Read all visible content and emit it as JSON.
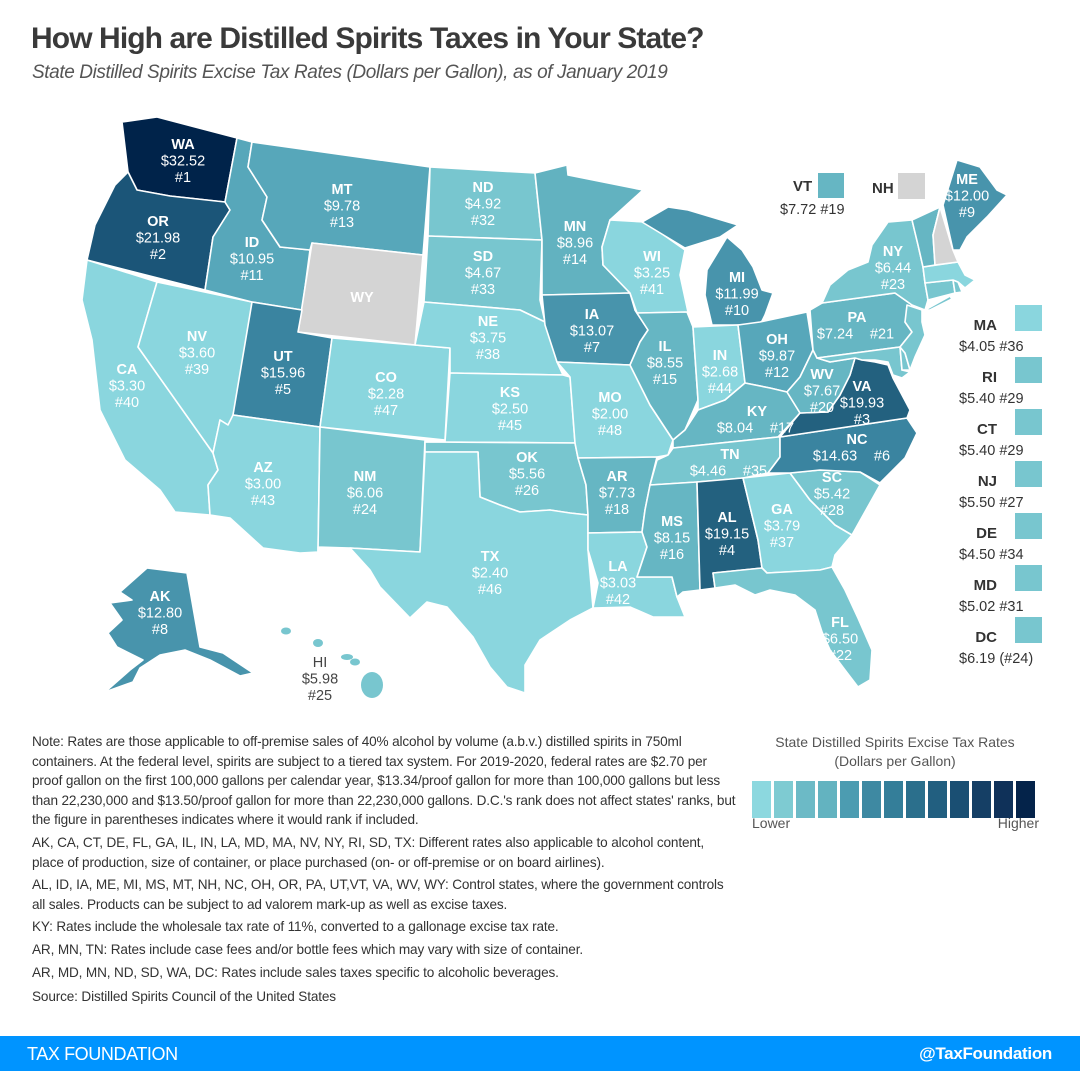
{
  "header": {
    "title": "How High are Distilled Spirits Taxes in Your State?",
    "subtitle": "State Distilled Spirits Excise Tax Rates (Dollars per Gallon), as of January 2019"
  },
  "colors": {
    "no_data": "#d4d4d4",
    "label_light": "#ffffff",
    "label_dark": "#444444",
    "footer": "#0094ff"
  },
  "states": [
    {
      "abbr": "WA",
      "rate": "$32.52",
      "rank": "#1",
      "color": "#00234a"
    },
    {
      "abbr": "OR",
      "rate": "$21.98",
      "rank": "#2",
      "color": "#1b5578"
    },
    {
      "abbr": "VA",
      "rate": "$19.93",
      "rank": "#3",
      "color": "#23617f"
    },
    {
      "abbr": "AL",
      "rate": "$19.15",
      "rank": "#4",
      "color": "#23617f"
    },
    {
      "abbr": "UT",
      "rate": "$15.96",
      "rank": "#5",
      "color": "#3a84a0"
    },
    {
      "abbr": "NC",
      "rate": "$14.63",
      "rank": "#6",
      "color": "#3a84a0"
    },
    {
      "abbr": "IA",
      "rate": "$13.07",
      "rank": "#7",
      "color": "#4894ac"
    },
    {
      "abbr": "AK",
      "rate": "$12.80",
      "rank": "#8",
      "color": "#4894ac"
    },
    {
      "abbr": "ME",
      "rate": "$12.00",
      "rank": "#9",
      "color": "#4894ac"
    },
    {
      "abbr": "MI",
      "rate": "$11.99",
      "rank": "#10",
      "color": "#4894ac"
    },
    {
      "abbr": "ID",
      "rate": "$10.95",
      "rank": "#11",
      "color": "#57a7ba"
    },
    {
      "abbr": "OH",
      "rate": "$9.87",
      "rank": "#12",
      "color": "#57a7ba"
    },
    {
      "abbr": "MT",
      "rate": "$9.78",
      "rank": "#13",
      "color": "#57a7ba"
    },
    {
      "abbr": "MN",
      "rate": "$8.96",
      "rank": "#14",
      "color": "#62b2c0"
    },
    {
      "abbr": "IL",
      "rate": "$8.55",
      "rank": "#15",
      "color": "#66b6c3"
    },
    {
      "abbr": "MS",
      "rate": "$8.15",
      "rank": "#16",
      "color": "#66b6c3"
    },
    {
      "abbr": "KY",
      "rate": "$8.04",
      "rank": "#17",
      "color": "#66b6c3"
    },
    {
      "abbr": "AR",
      "rate": "$7.73",
      "rank": "#18",
      "color": "#66b6c3"
    },
    {
      "abbr": "VT",
      "rate": "$7.72",
      "rank": "#19",
      "color": "#66b6c3"
    },
    {
      "abbr": "WV",
      "rate": "$7.67",
      "rank": "#20",
      "color": "#66b6c3"
    },
    {
      "abbr": "PA",
      "rate": "$7.24",
      "rank": "#21",
      "color": "#66b6c3"
    },
    {
      "abbr": "FL",
      "rate": "$6.50",
      "rank": "#22",
      "color": "#78c6cf"
    },
    {
      "abbr": "NY",
      "rate": "$6.44",
      "rank": "#23",
      "color": "#78c6cf"
    },
    {
      "abbr": "NM",
      "rate": "$6.06",
      "rank": "#24",
      "color": "#78c6cf"
    },
    {
      "abbr": "HI",
      "rate": "$5.98",
      "rank": "#25",
      "color": "#78c6cf"
    },
    {
      "abbr": "OK",
      "rate": "$5.56",
      "rank": "#26",
      "color": "#78c6cf"
    },
    {
      "abbr": "NJ",
      "rate": "$5.50",
      "rank": "#27",
      "color": "#78c6cf"
    },
    {
      "abbr": "SC",
      "rate": "$5.42",
      "rank": "#28",
      "color": "#78c6cf"
    },
    {
      "abbr": "RI",
      "rate": "$5.40",
      "rank": "#29",
      "color": "#78c6cf"
    },
    {
      "abbr": "CT",
      "rate": "$5.40",
      "rank": "#29",
      "color": "#78c6cf"
    },
    {
      "abbr": "MD",
      "rate": "$5.02",
      "rank": "#31",
      "color": "#78c6cf"
    },
    {
      "abbr": "ND",
      "rate": "$4.92",
      "rank": "#32",
      "color": "#78c6cf"
    },
    {
      "abbr": "SD",
      "rate": "$4.67",
      "rank": "#33",
      "color": "#78c6cf"
    },
    {
      "abbr": "DE",
      "rate": "$4.50",
      "rank": "#34",
      "color": "#78c6cf"
    },
    {
      "abbr": "TN",
      "rate": "$4.46",
      "rank": "#35",
      "color": "#78c6cf"
    },
    {
      "abbr": "MA",
      "rate": "$4.05",
      "rank": "#36",
      "color": "#8ad6de"
    },
    {
      "abbr": "GA",
      "rate": "$3.79",
      "rank": "#37",
      "color": "#8ad6de"
    },
    {
      "abbr": "NE",
      "rate": "$3.75",
      "rank": "#38",
      "color": "#8ad6de"
    },
    {
      "abbr": "NV",
      "rate": "$3.60",
      "rank": "#39",
      "color": "#8ad6de"
    },
    {
      "abbr": "CA",
      "rate": "$3.30",
      "rank": "#40",
      "color": "#8ad6de"
    },
    {
      "abbr": "WI",
      "rate": "$3.25",
      "rank": "#41",
      "color": "#8ad6de"
    },
    {
      "abbr": "LA",
      "rate": "$3.03",
      "rank": "#42",
      "color": "#8ad6de"
    },
    {
      "abbr": "AZ",
      "rate": "$3.00",
      "rank": "#43",
      "color": "#8ad6de"
    },
    {
      "abbr": "IN",
      "rate": "$2.68",
      "rank": "#44",
      "color": "#8ad6de"
    },
    {
      "abbr": "KS",
      "rate": "$2.50",
      "rank": "#45",
      "color": "#8ad6de"
    },
    {
      "abbr": "TX",
      "rate": "$2.40",
      "rank": "#46",
      "color": "#8ad6de"
    },
    {
      "abbr": "CO",
      "rate": "$2.28",
      "rank": "#47",
      "color": "#8ad6de"
    },
    {
      "abbr": "MO",
      "rate": "$2.00",
      "rank": "#48",
      "color": "#8ad6de"
    },
    {
      "abbr": "WY",
      "rate": null,
      "rank": null,
      "color": "#d4d4d4"
    },
    {
      "abbr": "NH",
      "rate": null,
      "rank": null,
      "color": "#d4d4d4"
    },
    {
      "abbr": "DC",
      "rate": "$6.19",
      "rank": "(#24)",
      "color": "#78c6cf"
    }
  ],
  "side_legend": [
    {
      "abbr": "MA",
      "value": "$4.05 #36",
      "color": "#8ad6de"
    },
    {
      "abbr": "RI",
      "value": "$5.40 #29",
      "color": "#78c6cf"
    },
    {
      "abbr": "CT",
      "value": "$5.40 #29",
      "color": "#78c6cf"
    },
    {
      "abbr": "NJ",
      "value": "$5.50 #27",
      "color": "#78c6cf"
    },
    {
      "abbr": "DE",
      "value": "$4.50 #34",
      "color": "#78c6cf"
    },
    {
      "abbr": "MD",
      "value": "$5.02 #31",
      "color": "#78c6cf"
    },
    {
      "abbr": "DC",
      "value": "$6.19 (#24)",
      "color": "#78c6cf"
    }
  ],
  "top_keys": {
    "vt": {
      "abbr": "VT",
      "value": "$7.72 #19",
      "color": "#66b6c3"
    },
    "nh": {
      "abbr": "NH",
      "color": "#d4d4d4"
    }
  },
  "notes": [
    "Note: Rates are those applicable to off-premise sales of 40% alcohol by volume (a.b.v.) distilled spirits in 750ml containers. At the federal level, spirits are subject to a tiered tax system. For 2019-2020, federal rates are  $2.70 per proof gallon on the first 100,000 gallons per calendar year, $13.34/proof gallon for more than 100,000 gallons but less than 22,230,000 and $13.50/proof gallon for more than 22,230,000 gallons. D.C.'s rank does not affect states' ranks, but the figure in parentheses indicates where it would rank if included.",
    "AK, CA, CT, DE,  FL, GA, IL, IN, LA, MD, MA, NV, NY, RI, SD, TX: Different rates also applicable to alcohol content, place of production, size of container, or place purchased (on- or off-premise or on board airlines).",
    "AL, ID, IA, ME, MI, MS, MT, NH, NC, OH, OR, PA, UT,VT, VA, WV, WY: Control states, where the government controls all sales. Products can be subject to ad valorem mark-up as well as excise taxes.",
    "KY: Rates include the wholesale tax rate of 11%, converted to a gallonage excise tax rate.",
    "AR, MN, TN: Rates include case fees and/or bottle fees which may vary with size of container.",
    "AR, MD, MN, ND, SD, WA, DC: Rates include sales taxes specific to alcoholic beverages.",
    "Source: Distilled Spirits Council of the United States"
  ],
  "legend": {
    "title_line1": "State Distilled Spirits Excise Tax Rates",
    "title_line2": "(Dollars per Gallon)",
    "low_label": "Lower",
    "high_label": "Higher",
    "scale": [
      "#8cd8df",
      "#7ecbd2",
      "#6cbac6",
      "#63b3c0",
      "#4c9cb1",
      "#3e89a2",
      "#347e99",
      "#2b6f8c",
      "#225f80",
      "#1a4f73",
      "#153f65",
      "#0f3159",
      "#04234a"
    ]
  },
  "footer": {
    "brand": "TAX FOUNDATION",
    "handle": "@TaxFoundation"
  }
}
